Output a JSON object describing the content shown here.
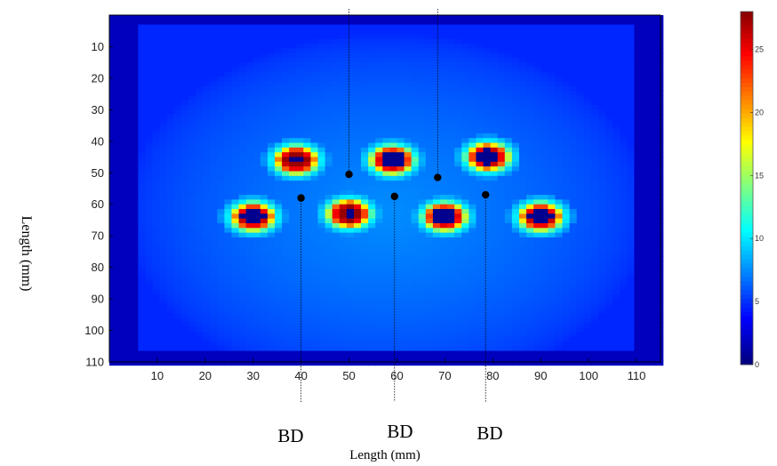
{
  "chart_data": {
    "type": "heatmap",
    "xlabel": "Length (mm)",
    "ylabel": "Length (mm)",
    "xticks": [
      10,
      20,
      30,
      40,
      50,
      60,
      70,
      80,
      90,
      100,
      110
    ],
    "yticks": [
      10,
      20,
      30,
      40,
      50,
      60,
      70,
      80,
      90,
      100,
      110
    ],
    "xlim": [
      0,
      115
    ],
    "ylim": [
      0,
      110
    ],
    "y_axis_direction": "top-to-bottom",
    "colormap": "jet",
    "colorbar": {
      "range": [
        0,
        28
      ],
      "ticks": [
        0,
        5,
        10,
        15,
        20,
        25
      ],
      "placement": "right"
    },
    "field": {
      "plateau_value": 6,
      "plate_value": 3,
      "edge_value": 0,
      "plate_x_range": [
        6,
        110
      ],
      "plate_y_range": [
        3,
        106
      ]
    },
    "hotspots": [
      {
        "x": 39,
        "y": 46,
        "radius": 4.5,
        "core": "mixed"
      },
      {
        "x": 59,
        "y": 46,
        "radius": 4.5,
        "core": "hole"
      },
      {
        "x": 79,
        "y": 45,
        "radius": 4.5,
        "core": "hole"
      },
      {
        "x": 30,
        "y": 64,
        "radius": 4.5,
        "core": "hole"
      },
      {
        "x": 50,
        "y": 63,
        "radius": 4.5,
        "core": "mixed"
      },
      {
        "x": 70,
        "y": 64,
        "radius": 4.5,
        "core": "hole"
      },
      {
        "x": 90,
        "y": 64,
        "radius": 4.5,
        "core": "hole"
      }
    ],
    "markers": [
      {
        "x": 50,
        "y": 50.5
      },
      {
        "x": 68.5,
        "y": 51.5
      },
      {
        "x": 40,
        "y": 58
      },
      {
        "x": 59.5,
        "y": 57.5
      },
      {
        "x": 78.5,
        "y": 57
      }
    ],
    "annotations": [
      {
        "text": "BD",
        "x": 40
      },
      {
        "text": "BD",
        "x": 59.5
      },
      {
        "text": "BD",
        "x": 78.5
      }
    ]
  }
}
